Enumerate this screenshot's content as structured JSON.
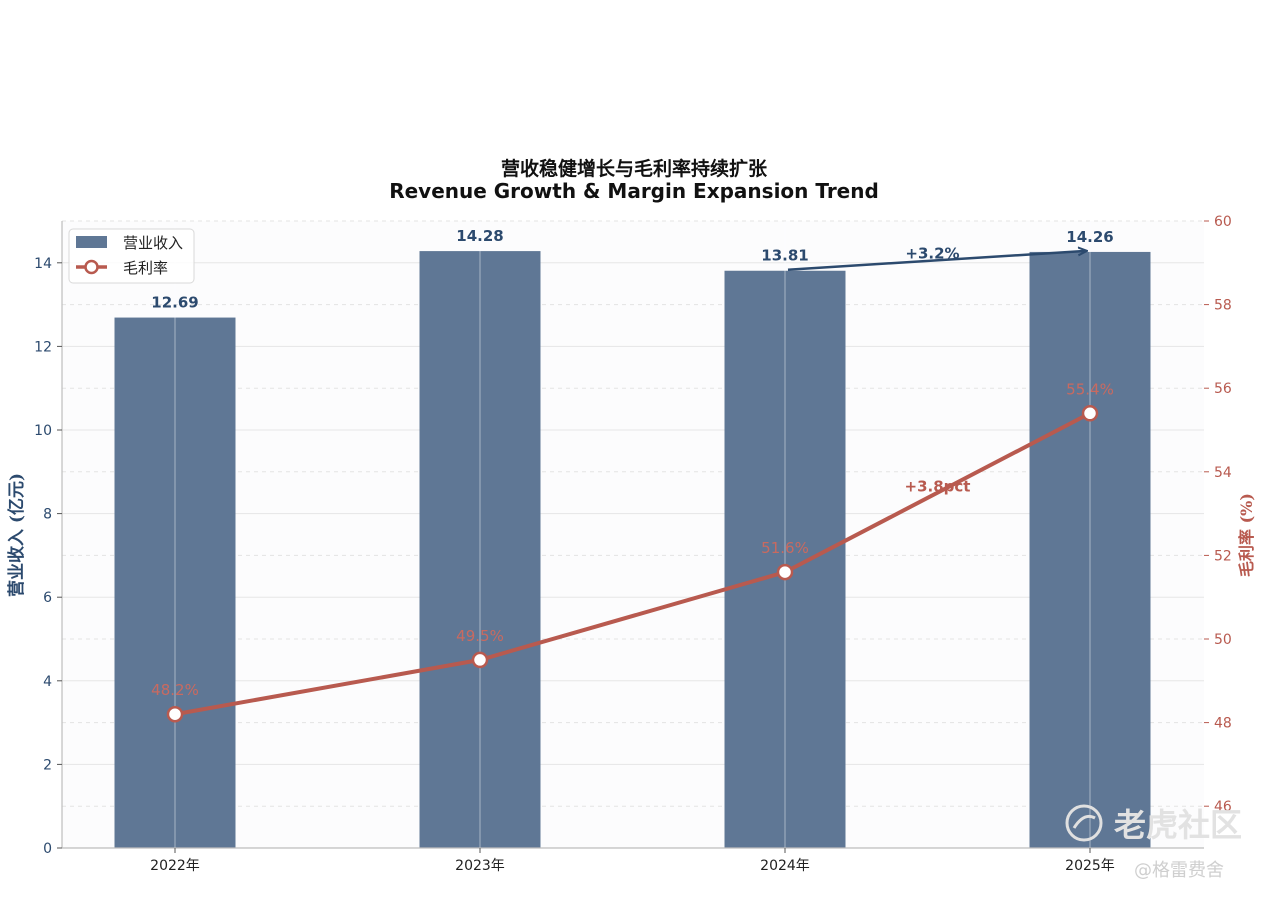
{
  "chart_data": {
    "type": "bar",
    "title_cn": "营收稳健增长与毛利率持续扩张",
    "title_en": "Revenue Growth & Margin Expansion Trend",
    "categories": [
      "2022年",
      "2023年",
      "2024年",
      "2025年"
    ],
    "series": [
      {
        "name": "营业收入",
        "type": "bar",
        "axis": "left",
        "values": [
          12.69,
          14.28,
          13.81,
          14.26
        ],
        "labels": [
          "12.69",
          "14.28",
          "13.81",
          "14.26"
        ],
        "color": "#5f7795"
      },
      {
        "name": "毛利率",
        "type": "line",
        "axis": "right",
        "values": [
          48.2,
          49.5,
          51.6,
          55.4
        ],
        "labels": [
          "48.2%",
          "49.5%",
          "51.6%",
          "55.4%"
        ],
        "color": "#b85a4f"
      }
    ],
    "ylabel_left": "营业收入 (亿元)",
    "ylabel_right": "毛利率 (%)",
    "ylim_left": [
      0,
      15
    ],
    "ylim_right": [
      45,
      60
    ],
    "yticks_left": [
      0,
      2,
      4,
      6,
      8,
      10,
      12,
      14
    ],
    "yticks_right": [
      46,
      48,
      50,
      52,
      54,
      56,
      58,
      60
    ],
    "annotations": [
      {
        "text": "+3.2%",
        "series": "营业收入",
        "from_category": "2024年",
        "to_category": "2025年"
      },
      {
        "text": "+3.8pct",
        "series": "毛利率",
        "from_category": "2024年",
        "to_category": "2025年"
      }
    ],
    "legend_position": "top-left",
    "grid": true
  },
  "watermark": {
    "logo_text": "老虎社区",
    "author": "@格雷费舍"
  },
  "colors": {
    "bar": "#5f7795",
    "line": "#b85a4f",
    "left_axis": "#2c4a6e",
    "right_axis": "#b85a4f"
  }
}
